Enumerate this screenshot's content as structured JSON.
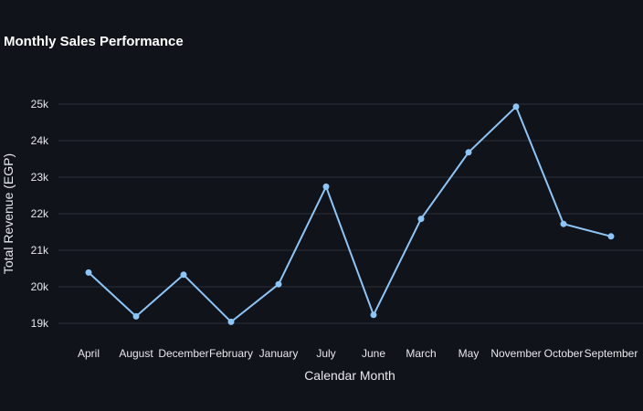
{
  "chart_data": {
    "type": "line",
    "title": "Monthly Sales Performance",
    "xlabel": "Calendar Month",
    "ylabel": "Total Revenue (EGP)",
    "categories": [
      "April",
      "August",
      "December",
      "February",
      "January",
      "July",
      "June",
      "March",
      "May",
      "November",
      "October",
      "September"
    ],
    "values": [
      20390,
      19190,
      20330,
      19040,
      20070,
      22740,
      19230,
      21860,
      23680,
      24930,
      21720,
      21380
    ],
    "ylim": [
      18500,
      25500
    ],
    "yticks": [
      19000,
      20000,
      21000,
      22000,
      23000,
      24000,
      25000
    ],
    "ytick_labels": [
      "19k",
      "20k",
      "21k",
      "22k",
      "23k",
      "24k",
      "25k"
    ],
    "grid": true,
    "legend": "none",
    "colors": {
      "background": "#10131a",
      "series": "#8ec5f7",
      "grid": "#2b2f38",
      "text": "#e6e8ec",
      "title": "#ffffff"
    }
  }
}
